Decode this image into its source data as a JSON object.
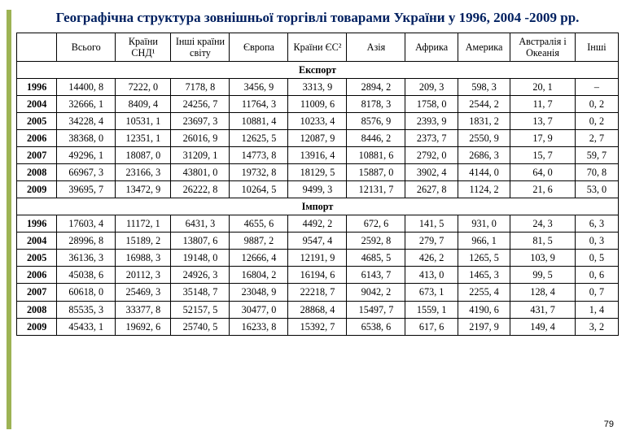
{
  "title": "Географічна структура зовнішньої торгівлі товарами України у 1996, 2004 -2009 рр.",
  "page_number": "79",
  "columns": {
    "year": "",
    "total": "Всього",
    "cis": "Країни СНД¹",
    "other_world": "Інші країни світу",
    "europe": "Європа",
    "eu": "Країни ЄС²",
    "asia": "Азія",
    "africa": "Африка",
    "america": "Америка",
    "australia": "Австралія і Океанія",
    "other": "Інші"
  },
  "sections": {
    "export_label": "Експорт",
    "import_label": "Імпорт"
  },
  "export_rows": [
    {
      "year": "1996",
      "total": "14400, 8",
      "cis": "7222, 0",
      "other_world": "7178, 8",
      "europe": "3456, 9",
      "eu": "3313, 9",
      "asia": "2894, 2",
      "africa": "209, 3",
      "america": "598, 3",
      "australia": "20, 1",
      "other": "–"
    },
    {
      "year": "2004",
      "total": "32666, 1",
      "cis": "8409, 4",
      "other_world": "24256, 7",
      "europe": "11764, 3",
      "eu": "11009, 6",
      "asia": "8178, 3",
      "africa": "1758, 0",
      "america": "2544, 2",
      "australia": "11, 7",
      "other": "0, 2"
    },
    {
      "year": "2005",
      "total": "34228, 4",
      "cis": "10531, 1",
      "other_world": "23697, 3",
      "europe": "10881, 4",
      "eu": "10233, 4",
      "asia": "8576, 9",
      "africa": "2393, 9",
      "america": "1831, 2",
      "australia": "13, 7",
      "other": "0, 2"
    },
    {
      "year": "2006",
      "total": "38368, 0",
      "cis": "12351, 1",
      "other_world": "26016, 9",
      "europe": "12625, 5",
      "eu": "12087, 9",
      "asia": "8446, 2",
      "africa": "2373, 7",
      "america": "2550, 9",
      "australia": "17, 9",
      "other": "2, 7"
    },
    {
      "year": "2007",
      "total": "49296, 1",
      "cis": "18087, 0",
      "other_world": "31209, 1",
      "europe": "14773, 8",
      "eu": "13916, 4",
      "asia": "10881, 6",
      "africa": "2792, 0",
      "america": "2686, 3",
      "australia": "15, 7",
      "other": "59, 7"
    },
    {
      "year": "2008",
      "total": "66967, 3",
      "cis": "23166, 3",
      "other_world": "43801, 0",
      "europe": "19732, 8",
      "eu": "18129, 5",
      "asia": "15887, 0",
      "africa": "3902, 4",
      "america": "4144, 0",
      "australia": "64, 0",
      "other": "70, 8"
    },
    {
      "year": "2009",
      "total": "39695, 7",
      "cis": "13472, 9",
      "other_world": "26222, 8",
      "europe": "10264, 5",
      "eu": "9499, 3",
      "asia": "12131, 7",
      "africa": "2627, 8",
      "america": "1124, 2",
      "australia": "21, 6",
      "other": "53, 0"
    }
  ],
  "import_rows": [
    {
      "year": "1996",
      "total": "17603, 4",
      "cis": "11172, 1",
      "other_world": "6431, 3",
      "europe": "4655, 6",
      "eu": "4492, 2",
      "asia": "672, 6",
      "africa": "141, 5",
      "america": "931, 0",
      "australia": "24, 3",
      "other": "6, 3"
    },
    {
      "year": "2004",
      "total": "28996, 8",
      "cis": "15189, 2",
      "other_world": "13807, 6",
      "europe": "9887, 2",
      "eu": "9547, 4",
      "asia": "2592, 8",
      "africa": "279, 7",
      "america": "966, 1",
      "australia": "81, 5",
      "other": "0, 3"
    },
    {
      "year": "2005",
      "total": "36136, 3",
      "cis": "16988, 3",
      "other_world": "19148, 0",
      "europe": "12666, 4",
      "eu": "12191, 9",
      "asia": "4685, 5",
      "africa": "426, 2",
      "america": "1265, 5",
      "australia": "103, 9",
      "other": "0, 5"
    },
    {
      "year": "2006",
      "total": "45038, 6",
      "cis": "20112, 3",
      "other_world": "24926, 3",
      "europe": "16804, 2",
      "eu": "16194, 6",
      "asia": "6143, 7",
      "africa": "413, 0",
      "america": "1465, 3",
      "australia": "99, 5",
      "other": "0, 6"
    },
    {
      "year": "2007",
      "total": "60618, 0",
      "cis": "25469, 3",
      "other_world": "35148, 7",
      "europe": "23048, 9",
      "eu": "22218, 7",
      "asia": "9042, 2",
      "africa": "673, 1",
      "america": "2255, 4",
      "australia": "128, 4",
      "other": "0, 7"
    },
    {
      "year": "2008",
      "total": "85535, 3",
      "cis": "33377, 8",
      "other_world": "52157, 5",
      "europe": "30477, 0",
      "eu": "28868, 4",
      "asia": "15497, 7",
      "africa": "1559, 1",
      "america": "4190, 6",
      "australia": "431, 7",
      "other": "1, 4"
    },
    {
      "year": "2009",
      "total": "45433, 1",
      "cis": "19692, 6",
      "other_world": "25740, 5",
      "europe": "16233, 8",
      "eu": "15392, 7",
      "asia": "6538, 6",
      "africa": "617, 6",
      "america": "2197, 9",
      "australia": "149, 4",
      "other": "3, 2"
    }
  ]
}
